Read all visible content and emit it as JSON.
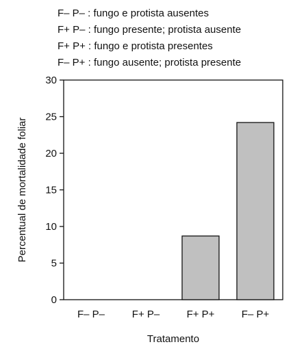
{
  "legend": [
    "F– P– : fungo e protista ausentes",
    "F+ P– : fungo presente; protista ausente",
    "F+ P+ : fungo e protista presentes",
    "F– P+ : fungo ausente; protista presente"
  ],
  "chart_data": {
    "type": "bar",
    "title": "",
    "xlabel": "Tratamento",
    "ylabel": "Percentual de mortalidade foliar",
    "categories": [
      "F– P–",
      "F+ P–",
      "F+ P+",
      "F– P+"
    ],
    "values": [
      0,
      0,
      8.7,
      24.2
    ],
    "ylim": [
      0,
      30
    ],
    "yticks": [
      0,
      5,
      10,
      15,
      20,
      25,
      30
    ],
    "bar_color": "#c0c0c0",
    "grid": false,
    "legend_placement": "top"
  }
}
